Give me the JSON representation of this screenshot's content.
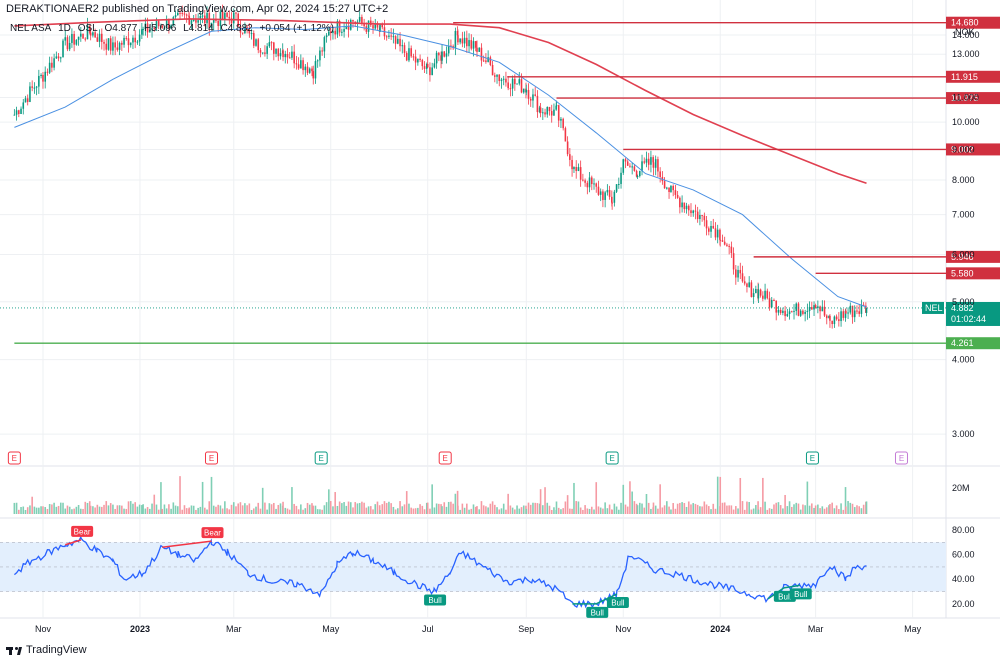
{
  "header": {
    "publisher": "DERAKTIONAER2 published on TradingView.com, Apr 02, 2024 15:27 UTC+2"
  },
  "symbol": {
    "name": "NEL ASA",
    "interval": "1D",
    "exchange": "OSL",
    "open": "O4.877",
    "high": "H5.096",
    "low": "L4.814",
    "close": "C4.882",
    "change": "+0.054 (+1.12%)"
  },
  "footer": {
    "brand": "TradingView"
  },
  "colors": {
    "up": "#089981",
    "down": "#f23645",
    "ma_fast": "#4a90e2",
    "ma_slow": "#e04050",
    "level": "#d0303f",
    "support": "#4caf50",
    "rsi": "#2962ff",
    "rsi_band": "#e3effd",
    "grid": "#eef0f3"
  },
  "chart_data": [
    {
      "type": "candlestick",
      "title": "",
      "currency": "NOK",
      "yscale": "log",
      "ylim": [
        2.8,
        15.3
      ],
      "y_ticks": [
        "3.000",
        "4.000",
        "5.000",
        "6.000",
        "7.000",
        "8.000",
        "9.000",
        "10.000",
        "11.000",
        "13.000",
        "14.000"
      ],
      "x_ticks": [
        "Nov",
        "2023",
        "Mar",
        "May",
        "Jul",
        "Sep",
        "Nov",
        "2024",
        "Mar",
        "May"
      ],
      "close_path": [
        {
          "x": "2022-10-14",
          "y": 10.3
        },
        {
          "x": "2022-11-01",
          "y": 12.0
        },
        {
          "x": "2022-11-15",
          "y": 13.5
        },
        {
          "x": "2022-12-01",
          "y": 14.2
        },
        {
          "x": "2022-12-15",
          "y": 13.3
        },
        {
          "x": "2023-01-03",
          "y": 14.2
        },
        {
          "x": "2023-01-15",
          "y": 14.6
        },
        {
          "x": "2023-02-01",
          "y": 15.0
        },
        {
          "x": "2023-02-15",
          "y": 14.8
        },
        {
          "x": "2023-03-01",
          "y": 15.0
        },
        {
          "x": "2023-03-15",
          "y": 13.5
        },
        {
          "x": "2023-04-01",
          "y": 13.2
        },
        {
          "x": "2023-04-20",
          "y": 12.2
        },
        {
          "x": "2023-05-01",
          "y": 14.3
        },
        {
          "x": "2023-05-15",
          "y": 14.8
        },
        {
          "x": "2023-06-01",
          "y": 14.2
        },
        {
          "x": "2023-06-15",
          "y": 13.2
        },
        {
          "x": "2023-07-01",
          "y": 12.2
        },
        {
          "x": "2023-07-10",
          "y": 13.0
        },
        {
          "x": "2023-07-20",
          "y": 14.0
        },
        {
          "x": "2023-08-01",
          "y": 13.2
        },
        {
          "x": "2023-08-15",
          "y": 11.9
        },
        {
          "x": "2023-09-01",
          "y": 11.4
        },
        {
          "x": "2023-09-10",
          "y": 10.5
        },
        {
          "x": "2023-09-20",
          "y": 10.4
        },
        {
          "x": "2023-10-01",
          "y": 8.3
        },
        {
          "x": "2023-10-15",
          "y": 7.7
        },
        {
          "x": "2023-10-25",
          "y": 7.4
        },
        {
          "x": "2023-11-01",
          "y": 8.5
        },
        {
          "x": "2023-11-10",
          "y": 8.3
        },
        {
          "x": "2023-11-20",
          "y": 8.6
        },
        {
          "x": "2023-12-01",
          "y": 7.6
        },
        {
          "x": "2023-12-15",
          "y": 7.1
        },
        {
          "x": "2024-01-01",
          "y": 6.5
        },
        {
          "x": "2024-01-15",
          "y": 5.3
        },
        {
          "x": "2024-01-25",
          "y": 5.2
        },
        {
          "x": "2024-02-01",
          "y": 5.0
        },
        {
          "x": "2024-02-15",
          "y": 4.8
        },
        {
          "x": "2024-03-01",
          "y": 5.0
        },
        {
          "x": "2024-03-10",
          "y": 4.6
        },
        {
          "x": "2024-03-20",
          "y": 4.8
        },
        {
          "x": "2024-04-02",
          "y": 4.88
        }
      ],
      "lines": [
        {
          "kind": "moving-average-fast",
          "points": [
            {
              "x": "2022-10-14",
              "y": 9.8
            },
            {
              "x": "2022-11-15",
              "y": 10.6
            },
            {
              "x": "2022-12-15",
              "y": 11.8
            },
            {
              "x": "2023-01-15",
              "y": 13.0
            },
            {
              "x": "2023-02-15",
              "y": 14.2
            },
            {
              "x": "2023-03-15",
              "y": 14.4
            },
            {
              "x": "2023-04-15",
              "y": 14.3
            },
            {
              "x": "2023-05-15",
              "y": 14.5
            },
            {
              "x": "2023-06-15",
              "y": 14.0
            },
            {
              "x": "2023-07-15",
              "y": 13.4
            },
            {
              "x": "2023-08-15",
              "y": 12.6
            },
            {
              "x": "2023-09-15",
              "y": 11.1
            },
            {
              "x": "2023-10-15",
              "y": 9.6
            },
            {
              "x": "2023-11-15",
              "y": 8.2
            },
            {
              "x": "2023-12-15",
              "y": 7.7
            },
            {
              "x": "2024-01-15",
              "y": 7.0
            },
            {
              "x": "2024-02-15",
              "y": 5.9
            },
            {
              "x": "2024-03-15",
              "y": 5.1
            },
            {
              "x": "2024-04-02",
              "y": 4.9
            }
          ]
        },
        {
          "kind": "moving-average-slow",
          "points": [
            {
              "x": "2022-10-14",
              "y": 14.5
            },
            {
              "x": "2022-12-01",
              "y": 14.7
            },
            {
              "x": "2023-02-01",
              "y": 14.9
            },
            {
              "x": "2023-04-01",
              "y": 14.8
            },
            {
              "x": "2023-06-01",
              "y": 14.6
            },
            {
              "x": "2023-07-15",
              "y": 14.6
            },
            {
              "x": "2023-08-15",
              "y": 14.4
            },
            {
              "x": "2023-09-15",
              "y": 13.6
            },
            {
              "x": "2023-10-15",
              "y": 12.5
            },
            {
              "x": "2023-11-15",
              "y": 11.3
            },
            {
              "x": "2023-12-15",
              "y": 10.3
            },
            {
              "x": "2024-01-15",
              "y": 9.5
            },
            {
              "x": "2024-02-15",
              "y": 8.8
            },
            {
              "x": "2024-03-15",
              "y": 8.2
            },
            {
              "x": "2024-04-02",
              "y": 7.9
            }
          ]
        }
      ],
      "levels": [
        {
          "value": 14.68,
          "label": "14.680",
          "from": "2023-07-17",
          "kind": "resistance"
        },
        {
          "value": 11.915,
          "label": "11.915",
          "from": "2023-08-20",
          "kind": "resistance"
        },
        {
          "value": 10.975,
          "label": "10.975",
          "from": "2023-09-20",
          "kind": "resistance"
        },
        {
          "value": 9.002,
          "label": "9.002",
          "from": "2023-11-01",
          "kind": "resistance"
        },
        {
          "value": 5.946,
          "label": "5.946",
          "from": "2024-01-22",
          "kind": "resistance"
        },
        {
          "value": 5.58,
          "label": "5.580",
          "from": "2024-03-01",
          "kind": "resistance"
        },
        {
          "value": 4.261,
          "label": "4.261",
          "from": "2022-10-14",
          "kind": "support"
        }
      ],
      "current_price": {
        "symbol": "NEL",
        "value": "4.882",
        "countdown": "01:02:44"
      },
      "events": [
        {
          "date": "2022-10-14",
          "label": "E",
          "kind": "earnings-miss"
        },
        {
          "date": "2023-02-15",
          "label": "E",
          "kind": "earnings-miss"
        },
        {
          "date": "2023-04-25",
          "label": "E",
          "kind": "earnings-beat"
        },
        {
          "date": "2023-07-12",
          "label": "E",
          "kind": "earnings-miss"
        },
        {
          "date": "2023-10-25",
          "label": "E",
          "kind": "earnings-beat"
        },
        {
          "date": "2024-02-28",
          "label": "E",
          "kind": "earnings-beat"
        },
        {
          "date": "2024-04-24",
          "label": "E",
          "kind": "earnings-upcoming"
        }
      ]
    },
    {
      "type": "bar",
      "title": "",
      "y_ticks": [
        "20M"
      ],
      "note": "daily volume, colored by candle direction"
    },
    {
      "type": "line",
      "title": "",
      "ylim": [
        15,
        80
      ],
      "y_ticks": [
        "20.00",
        "40.00",
        "60.00",
        "80.00"
      ],
      "band": [
        30,
        70
      ],
      "points": [
        {
          "x": "2022-10-14",
          "y": 45
        },
        {
          "x": "2022-10-25",
          "y": 55
        },
        {
          "x": "2022-11-05",
          "y": 62
        },
        {
          "x": "2022-11-15",
          "y": 68
        },
        {
          "x": "2022-11-25",
          "y": 72
        },
        {
          "x": "2022-12-05",
          "y": 63
        },
        {
          "x": "2022-12-15",
          "y": 55
        },
        {
          "x": "2022-12-22",
          "y": 40
        },
        {
          "x": "2023-01-03",
          "y": 45
        },
        {
          "x": "2023-01-15",
          "y": 66
        },
        {
          "x": "2023-01-25",
          "y": 60
        },
        {
          "x": "2023-02-05",
          "y": 55
        },
        {
          "x": "2023-02-15",
          "y": 71
        },
        {
          "x": "2023-02-25",
          "y": 62
        },
        {
          "x": "2023-03-10",
          "y": 45
        },
        {
          "x": "2023-03-25",
          "y": 38
        },
        {
          "x": "2023-04-10",
          "y": 36
        },
        {
          "x": "2023-04-25",
          "y": 28
        },
        {
          "x": "2023-05-05",
          "y": 52
        },
        {
          "x": "2023-05-15",
          "y": 62
        },
        {
          "x": "2023-05-28",
          "y": 55
        },
        {
          "x": "2023-06-10",
          "y": 45
        },
        {
          "x": "2023-06-25",
          "y": 35
        },
        {
          "x": "2023-07-05",
          "y": 30
        },
        {
          "x": "2023-07-15",
          "y": 45
        },
        {
          "x": "2023-07-22",
          "y": 62
        },
        {
          "x": "2023-08-05",
          "y": 50
        },
        {
          "x": "2023-08-20",
          "y": 38
        },
        {
          "x": "2023-09-05",
          "y": 40
        },
        {
          "x": "2023-09-20",
          "y": 32
        },
        {
          "x": "2023-09-30",
          "y": 20
        },
        {
          "x": "2023-10-15",
          "y": 20
        },
        {
          "x": "2023-10-28",
          "y": 28
        },
        {
          "x": "2023-11-05",
          "y": 60
        },
        {
          "x": "2023-11-20",
          "y": 48
        },
        {
          "x": "2023-12-05",
          "y": 44
        },
        {
          "x": "2023-12-20",
          "y": 38
        },
        {
          "x": "2024-01-05",
          "y": 33
        },
        {
          "x": "2024-01-20",
          "y": 28
        },
        {
          "x": "2024-01-31",
          "y": 24
        },
        {
          "x": "2024-02-10",
          "y": 33
        },
        {
          "x": "2024-02-20",
          "y": 35
        },
        {
          "x": "2024-03-01",
          "y": 36
        },
        {
          "x": "2024-03-10",
          "y": 52
        },
        {
          "x": "2024-03-20",
          "y": 40
        },
        {
          "x": "2024-03-26",
          "y": 50
        },
        {
          "x": "2024-04-02",
          "y": 51
        }
      ],
      "divergences": [
        {
          "label": "Bear",
          "from": "2022-11-15",
          "to": "2022-11-25"
        },
        {
          "label": "Bear",
          "from": "2023-01-15",
          "to": "2023-02-15"
        },
        {
          "label": "Bull",
          "from": "2023-07-05",
          "to": "2023-07-05"
        },
        {
          "label": "Bull",
          "from": "2023-09-30",
          "to": "2023-10-15"
        },
        {
          "label": "Bull",
          "from": "2023-10-15",
          "to": "2023-10-28"
        },
        {
          "label": "Bull",
          "from": "2024-01-31",
          "to": "2024-02-10"
        },
        {
          "label": "Bull",
          "from": "2024-02-10",
          "to": "2024-02-20"
        }
      ]
    }
  ]
}
